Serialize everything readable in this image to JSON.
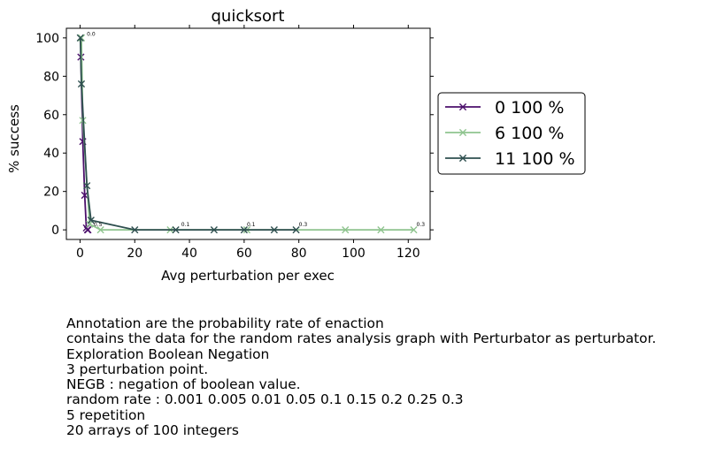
{
  "chart_data": {
    "type": "line",
    "title": "quicksort",
    "xlabel": "Avg perturbation per exec",
    "ylabel": "% success",
    "xlim": [
      -5,
      128
    ],
    "ylim": [
      -5,
      105
    ],
    "xticks": [
      0,
      20,
      40,
      60,
      80,
      100,
      120
    ],
    "yticks": [
      0,
      20,
      40,
      60,
      80,
      100
    ],
    "grid": false,
    "legend_position": "outside-right",
    "series": [
      {
        "name": "0 100 %",
        "color": "#4b0f6b",
        "points": [
          {
            "x": 0.3,
            "y": 90
          },
          {
            "x": 1.0,
            "y": 46
          },
          {
            "x": 1.7,
            "y": 18
          },
          {
            "x": 2.3,
            "y": 1
          },
          {
            "x": 2.7,
            "y": 0
          },
          {
            "x": 2.9,
            "y": 0
          }
        ]
      },
      {
        "name": "6 100 %",
        "color": "#8fc48f",
        "points": [
          {
            "x": 0.5,
            "y": 100
          },
          {
            "x": 1.0,
            "y": 57
          },
          {
            "x": 3.5,
            "y": 3
          },
          {
            "x": 7.5,
            "y": 0
          },
          {
            "x": 33,
            "y": 0
          },
          {
            "x": 61,
            "y": 0
          },
          {
            "x": 97,
            "y": 0
          },
          {
            "x": 110,
            "y": 0
          },
          {
            "x": 122,
            "y": 0
          }
        ]
      },
      {
        "name": "11 100 %",
        "color": "#2e4f4f",
        "points": [
          {
            "x": 0.1,
            "y": 100
          },
          {
            "x": 0.5,
            "y": 76
          },
          {
            "x": 2.5,
            "y": 23
          },
          {
            "x": 4.0,
            "y": 5
          },
          {
            "x": 20,
            "y": 0
          },
          {
            "x": 35,
            "y": 0
          },
          {
            "x": 49,
            "y": 0
          },
          {
            "x": 60,
            "y": 0
          },
          {
            "x": 71,
            "y": 0
          },
          {
            "x": 79,
            "y": 0
          }
        ]
      }
    ],
    "annotations": [
      {
        "text": "0.0",
        "x": 2.5,
        "y": 101
      },
      {
        "text": "0.5",
        "x": 5.0,
        "y": 2
      },
      {
        "text": "0.1",
        "x": 37,
        "y": 2
      },
      {
        "text": "0.1",
        "x": 61,
        "y": 2
      },
      {
        "text": "0.3",
        "x": 80,
        "y": 2
      },
      {
        "text": "0.3",
        "x": 123,
        "y": 2
      }
    ]
  },
  "caption_lines": [
    "Annotation are the probability rate of enaction",
    "contains the data for the random rates analysis graph with Perturbator as perturbator.",
    "Exploration Boolean Negation",
    "3 perturbation point.",
    "NEGB : negation of boolean value.",
    "random rate : 0.001 0.005 0.01 0.05 0.1 0.15 0.2 0.25 0.3",
    "5 repetition",
    "20 arrays of 100 integers"
  ]
}
